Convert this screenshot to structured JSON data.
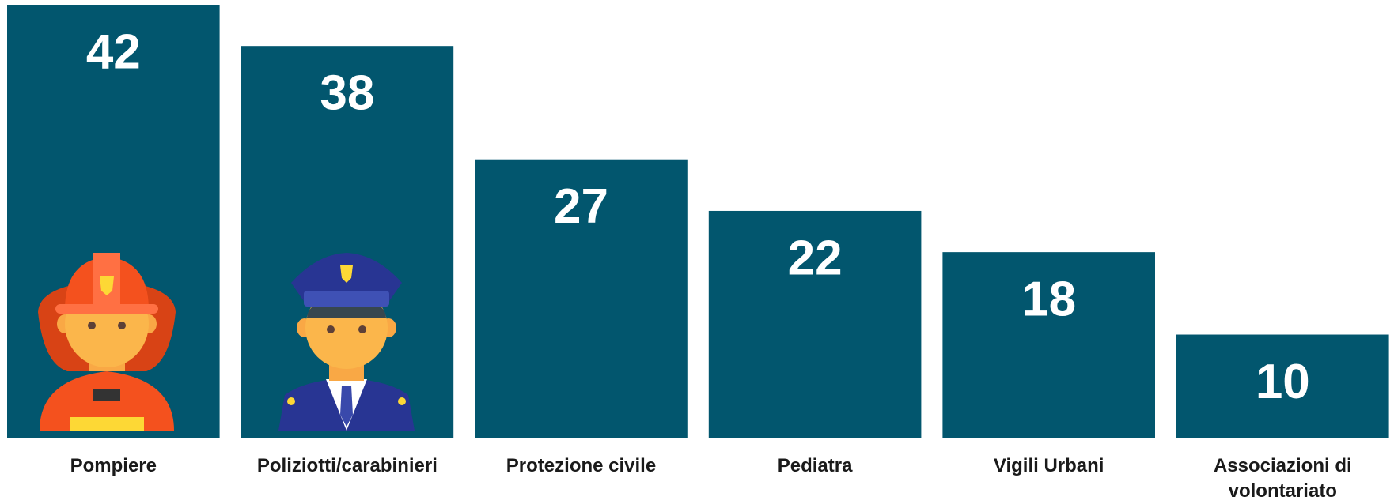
{
  "chart_data": {
    "type": "bar",
    "categories": [
      "Pompiere",
      "Poliziotti/carabinieri",
      "Protezione civile",
      "Pediatra",
      "Vigili Urbani",
      "Associazioni di volontariato"
    ],
    "values": [
      42,
      38,
      27,
      22,
      18,
      10
    ],
    "color": "#02566e"
  }
}
